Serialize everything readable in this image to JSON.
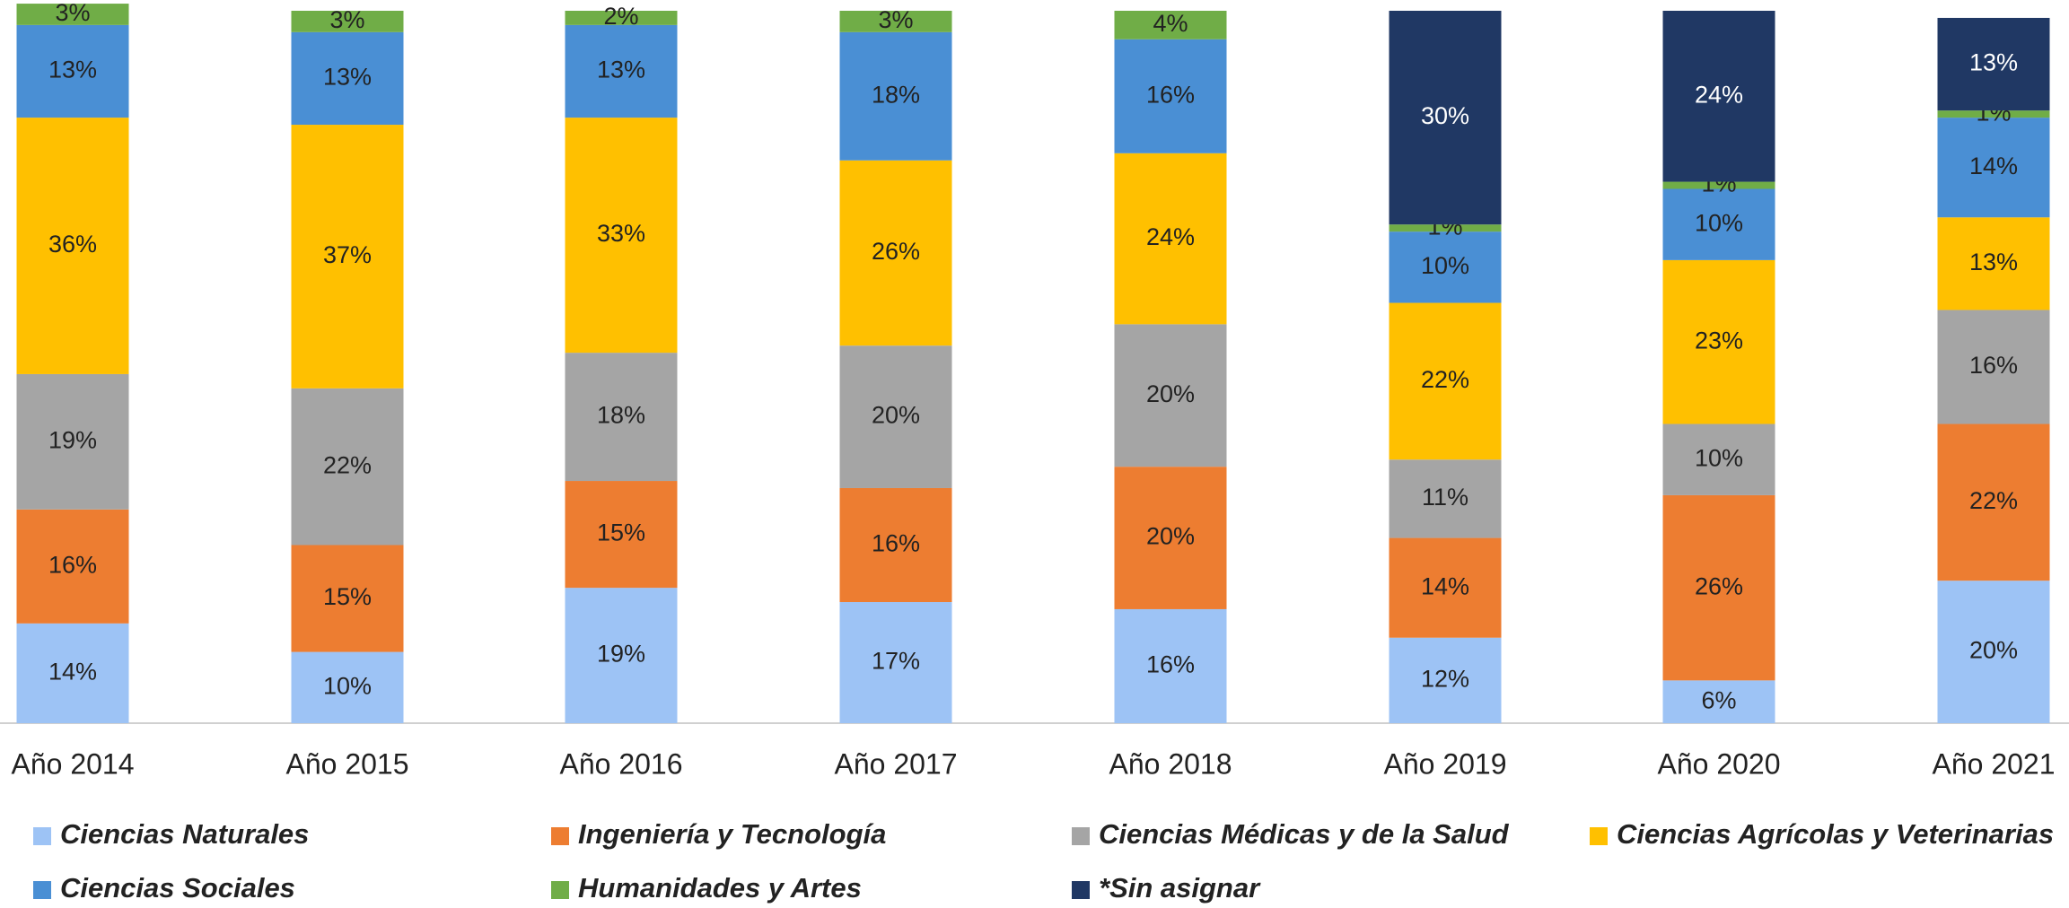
{
  "chart_data": {
    "type": "stacked_bar",
    "categories": [
      "Año 2014",
      "Año 2015",
      "Año 2016",
      "Año 2017",
      "Año 2018",
      "Año 2019",
      "Año 2020",
      "Año 2021"
    ],
    "ylim": [
      0,
      100
    ],
    "series": [
      {
        "name": "Ciencias Naturales",
        "color": "#9dc3f5",
        "values": [
          14,
          10,
          19,
          17,
          16,
          12,
          6,
          20
        ],
        "value_labels": [
          "14%",
          "10%",
          "19%",
          "17%",
          "16%",
          "12%",
          "6%",
          "20%"
        ]
      },
      {
        "name": "Ingeniería y Tecnología",
        "color": "#ed7d31",
        "values": [
          16,
          15,
          15,
          16,
          20,
          14,
          26,
          22
        ],
        "value_labels": [
          "16%",
          "15%",
          "15%",
          "16%",
          "20%",
          "14%",
          "26%",
          "22%"
        ]
      },
      {
        "name": "Ciencias Médicas y de la Salud",
        "color": "#a5a5a5",
        "values": [
          19,
          22,
          18,
          20,
          20,
          11,
          10,
          16
        ],
        "value_labels": [
          "19%",
          "22%",
          "18%",
          "20%",
          "20%",
          "11%",
          "10%",
          "16%"
        ]
      },
      {
        "name": "Ciencias Agrícolas y Veterinarias",
        "color": "#ffc000",
        "values": [
          36,
          37,
          33,
          26,
          24,
          22,
          23,
          13
        ],
        "value_labels": [
          "36%",
          "37%",
          "33%",
          "26%",
          "24%",
          "22%",
          "23%",
          "13%"
        ]
      },
      {
        "name": "Ciencias Sociales",
        "color": "#4a8fd4",
        "values": [
          13,
          13,
          13,
          18,
          16,
          10,
          10,
          14
        ],
        "value_labels": [
          "13%",
          "13%",
          "13%",
          "18%",
          "16%",
          "10%",
          "10%",
          "14%"
        ]
      },
      {
        "name": "Humanidades y Artes",
        "color": "#70ad47",
        "values": [
          3,
          3,
          2,
          3,
          4,
          1,
          1,
          1
        ],
        "value_labels": [
          "3%",
          "3%",
          "2%",
          "3%",
          "4%",
          "1%",
          "1%",
          "1%"
        ]
      },
      {
        "name": "*Sin asignar",
        "color": "#203864",
        "values": [
          null,
          null,
          null,
          null,
          null,
          30,
          24,
          13
        ],
        "value_labels": [
          null,
          null,
          null,
          null,
          null,
          "30%",
          "24%",
          "13%"
        ]
      }
    ]
  }
}
